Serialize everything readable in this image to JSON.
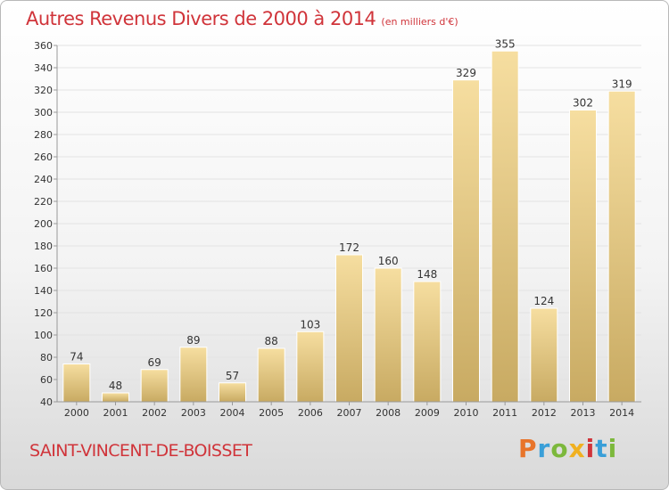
{
  "header": {
    "title": "Autres Revenus Divers de 2000 à 2014",
    "subtitle": "(en milliers d'€)"
  },
  "footer": {
    "commune": "SAINT-VINCENT-DE-BOISSET",
    "logo_text": "Proxiti"
  },
  "colors": {
    "title": "#d0343a",
    "bar_light": "#f6dea0",
    "bar_dark": "#c8aa62",
    "gridline": "#e3e3e3",
    "logo": [
      "#e8742a",
      "#3a9fd8",
      "#7cb83c",
      "#f0b020",
      "#d0343a",
      "#3a9fd8",
      "#7cb83c"
    ]
  },
  "chart_data": {
    "type": "bar",
    "title": "Autres Revenus Divers de 2000 à 2014",
    "subtitle": "(en milliers d'€)",
    "xlabel": "",
    "ylabel": "",
    "categories": [
      "2000",
      "2001",
      "2002",
      "2003",
      "2004",
      "2005",
      "2006",
      "2007",
      "2008",
      "2009",
      "2010",
      "2011",
      "2012",
      "2013",
      "2014"
    ],
    "values": [
      74,
      48,
      69,
      89,
      57,
      88,
      103,
      172,
      160,
      148,
      329,
      355,
      124,
      302,
      319
    ],
    "ylim": [
      40,
      360
    ],
    "yticks": [
      40,
      60,
      80,
      100,
      120,
      140,
      160,
      180,
      200,
      220,
      240,
      260,
      280,
      300,
      320,
      340,
      360
    ],
    "grid": true,
    "legend": "none"
  }
}
